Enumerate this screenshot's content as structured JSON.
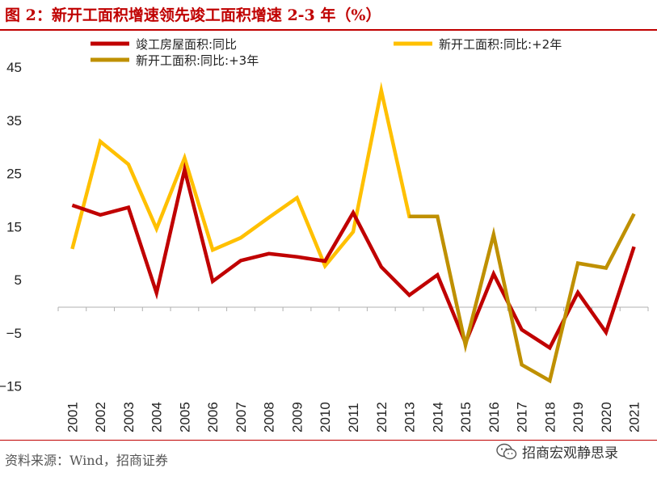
{
  "header": {
    "title": "图 2：新开工面积增速领先竣工面积增速 2-3 年（%）"
  },
  "footer": {
    "source": "资料来源：Wind，招商证券",
    "brand": "招商宏观静思录",
    "brand_icon": "wechat-icon"
  },
  "chart_data": {
    "type": "line",
    "x": [
      "2001",
      "2002",
      "2003",
      "2004",
      "2005",
      "2006",
      "2007",
      "2008",
      "2009",
      "2010",
      "2011",
      "2012",
      "2013",
      "2014",
      "2015",
      "2016",
      "2017",
      "2018",
      "2019",
      "2020",
      "2021"
    ],
    "yticks": [
      -15,
      -5,
      5,
      15,
      25,
      35,
      45
    ],
    "ytick_labels": [
      "−15",
      "−5",
      "5",
      "15",
      "25",
      "35",
      "45"
    ],
    "ylim": [
      -15,
      45
    ],
    "grid": false,
    "legend_position": "top",
    "series": [
      {
        "name": "竣工房屋面积:同比",
        "color": "#c00000",
        "values": [
          19.0,
          17.2,
          18.6,
          2.5,
          25.7,
          4.7,
          8.6,
          9.9,
          9.3,
          8.5,
          17.6,
          7.4,
          2.1,
          5.9,
          -6.9,
          6.1,
          -4.4,
          -7.8,
          2.6,
          -4.9,
          11.2
        ]
      },
      {
        "name": "新开工面积:同比:+2年",
        "color": "#ffc000",
        "values": [
          10.8,
          31.0,
          26.7,
          14.6,
          27.9,
          10.6,
          12.9,
          16.7,
          20.4,
          7.6,
          14.0,
          40.6,
          16.9,
          16.9,
          null,
          null,
          null,
          null,
          null,
          null,
          null
        ]
      },
      {
        "name": "新开工面积:同比:+3年",
        "color": "#bf9000",
        "values": [
          null,
          null,
          null,
          null,
          null,
          null,
          null,
          null,
          null,
          null,
          null,
          null,
          16.9,
          16.9,
          -7.3,
          13.5,
          -11.0,
          -14.0,
          8.1,
          7.2,
          17.4
        ]
      }
    ]
  }
}
